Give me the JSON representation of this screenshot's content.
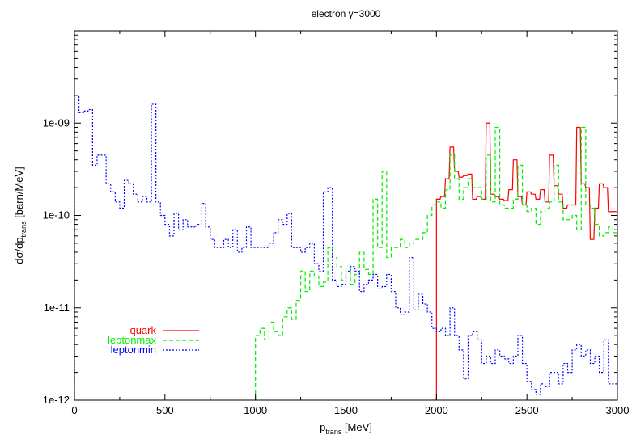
{
  "chart_data": {
    "type": "line",
    "step": true,
    "title": "electron γ=3000",
    "xlabel": {
      "main": "p",
      "sub": "trans",
      "unit": " [MeV]"
    },
    "ylabel": {
      "prefix": "dσ/dp",
      "sub": "trans",
      "unit": " [barn/MeV]"
    },
    "xlim": [
      0,
      3000
    ],
    "ylim": [
      1e-12,
      1e-08
    ],
    "yscale": "log",
    "grid": false,
    "legend_position": "bottom-left",
    "xticks": [
      0,
      500,
      1000,
      1500,
      2000,
      2500,
      3000
    ],
    "xtick_labels": [
      "0",
      "500",
      "1000",
      "1500",
      "2000",
      "2500",
      "3000"
    ],
    "yticks": [
      1e-12,
      1e-11,
      1e-10,
      1e-09
    ],
    "ytick_labels": [
      "1e-12",
      "1e-11",
      "1e-10",
      "1e-09"
    ],
    "series": [
      {
        "name": "quark",
        "color": "#ff0000",
        "dash": "",
        "x": [
          1980,
          2000,
          2025,
          2050,
          2075,
          2100,
          2125,
          2150,
          2175,
          2200,
          2225,
          2250,
          2275,
          2300,
          2325,
          2350,
          2375,
          2400,
          2425,
          2450,
          2475,
          2500,
          2525,
          2550,
          2575,
          2600,
          2625,
          2650,
          2675,
          2700,
          2725,
          2750,
          2775,
          2800,
          2825,
          2850,
          2875,
          2900,
          2925,
          2950,
          2975
        ],
        "y": [
          1e-12,
          1.5e-10,
          1.6e-10,
          2.5e-10,
          5.5e-10,
          3e-10,
          2.6e-10,
          2.7e-10,
          2.8e-10,
          1.5e-10,
          1.6e-10,
          1.5e-10,
          1e-09,
          1.7e-10,
          1.6e-10,
          1.5e-10,
          1.45e-10,
          1.9e-10,
          4e-10,
          1.6e-10,
          1.3e-10,
          1.8e-10,
          1.7e-10,
          1.5e-10,
          1.9e-10,
          1.4e-10,
          4.5e-10,
          2.1e-10,
          1.7e-10,
          1.2e-10,
          1.3e-10,
          1.3e-10,
          9e-10,
          2.2e-10,
          2e-10,
          5.5e-11,
          1.2e-10,
          2.2e-10,
          2e-10,
          1.1e-10,
          1.1e-10
        ]
      },
      {
        "name": "leptonmax",
        "color": "#00ee00",
        "dash": "5,3",
        "x": [
          1000,
          1025,
          1050,
          1075,
          1100,
          1125,
          1150,
          1175,
          1200,
          1225,
          1250,
          1275,
          1300,
          1325,
          1350,
          1375,
          1400,
          1425,
          1450,
          1475,
          1500,
          1525,
          1550,
          1575,
          1600,
          1625,
          1650,
          1675,
          1700,
          1725,
          1750,
          1775,
          1800,
          1825,
          1850,
          1875,
          1900,
          1925,
          1950,
          1975,
          2000,
          2025,
          2050,
          2075,
          2100,
          2125,
          2150,
          2175,
          2200,
          2225,
          2250,
          2275,
          2300,
          2325,
          2350,
          2375,
          2400,
          2425,
          2450,
          2475,
          2500,
          2525,
          2550,
          2575,
          2600,
          2625,
          2650,
          2675,
          2700,
          2725,
          2750,
          2775,
          2800,
          2825,
          2850,
          2875,
          2900,
          2925,
          2950,
          2975
        ],
        "y": [
          5e-12,
          6e-12,
          4.5e-12,
          7e-12,
          5.5e-12,
          5e-12,
          8e-12,
          1e-11,
          7.5e-12,
          1.2e-11,
          2.5e-11,
          1.5e-11,
          2.5e-11,
          2.2e-11,
          1.7e-11,
          1.9e-11,
          4.5e-11,
          3.5e-11,
          2.8e-11,
          2e-11,
          2.7e-11,
          1.8e-11,
          2.3e-11,
          4e-11,
          2.6e-11,
          2.3e-11,
          1.5e-10,
          4.5e-11,
          3e-10,
          3.5e-11,
          4.5e-11,
          4.5e-11,
          5.5e-11,
          4.5e-11,
          5e-11,
          5.5e-11,
          5.5e-11,
          6.5e-11,
          1e-10,
          1.3e-10,
          1.4e-10,
          1.2e-10,
          1.9e-10,
          4.5e-10,
          2.5e-10,
          1.5e-10,
          2e-10,
          2.5e-10,
          2e-10,
          2e-10,
          1.5e-10,
          4.5e-10,
          1.4e-10,
          9e-10,
          1.3e-10,
          1.2e-10,
          1.2e-10,
          1.5e-10,
          3.5e-10,
          1.3e-10,
          1.1e-10,
          1.2e-10,
          8e-11,
          1.1e-10,
          1.2e-10,
          1.4e-10,
          3.5e-10,
          1.4e-10,
          9e-11,
          9e-11,
          1e-10,
          7e-11,
          9e-10,
          1.3e-10,
          1.2e-10,
          8e-11,
          6e-11,
          6.5e-11,
          7.5e-11,
          6.5e-11
        ]
      },
      {
        "name": "leptonmin",
        "color": "#0000ff",
        "dash": "2,2",
        "x": [
          0,
          25,
          50,
          75,
          100,
          125,
          150,
          175,
          200,
          225,
          250,
          275,
          300,
          325,
          350,
          375,
          400,
          425,
          450,
          475,
          500,
          525,
          550,
          575,
          600,
          625,
          650,
          675,
          700,
          725,
          750,
          775,
          800,
          825,
          850,
          875,
          900,
          925,
          950,
          975,
          1000,
          1025,
          1050,
          1075,
          1100,
          1125,
          1150,
          1175,
          1200,
          1225,
          1250,
          1275,
          1300,
          1325,
          1350,
          1375,
          1400,
          1425,
          1450,
          1475,
          1500,
          1525,
          1550,
          1575,
          1600,
          1625,
          1650,
          1675,
          1700,
          1725,
          1750,
          1775,
          1800,
          1825,
          1850,
          1875,
          1900,
          1925,
          1950,
          1975,
          2000,
          2025,
          2050,
          2075,
          2100,
          2125,
          2150,
          2175,
          2200,
          2225,
          2250,
          2275,
          2300,
          2325,
          2350,
          2375,
          2400,
          2425,
          2450,
          2475,
          2500,
          2525,
          2550,
          2575,
          2600,
          2625,
          2650,
          2675,
          2700,
          2725,
          2750,
          2775,
          2800,
          2825,
          2850,
          2875,
          2900,
          2925,
          2950,
          2975
        ],
        "y": [
          2e-09,
          1.3e-09,
          1.35e-09,
          1.4e-09,
          3.5e-10,
          4.5e-10,
          4.5e-10,
          2.2e-10,
          1.8e-10,
          1.4e-10,
          1.2e-10,
          2.4e-10,
          2.2e-10,
          1.7e-10,
          1.4e-10,
          1.6e-10,
          1.4e-10,
          1.6e-09,
          1.4e-10,
          1e-10,
          8e-11,
          6e-11,
          1.05e-10,
          7e-11,
          9e-11,
          7.5e-11,
          7.5e-11,
          8e-11,
          1.35e-10,
          7.5e-11,
          5.5e-11,
          4.5e-11,
          4.5e-11,
          5.5e-11,
          4.5e-11,
          7e-11,
          4e-11,
          4.5e-11,
          7.5e-11,
          4.5e-11,
          4.5e-11,
          4.5e-11,
          4.5e-11,
          5e-11,
          6.5e-11,
          9e-11,
          8e-11,
          1.05e-10,
          4.5e-11,
          4.5e-11,
          4e-11,
          4.5e-11,
          5e-11,
          3e-11,
          2.5e-11,
          1.8e-10,
          2e-10,
          2e-11,
          1.7e-11,
          1.8e-11,
          2.5e-11,
          2.8e-11,
          2.5e-11,
          1.5e-11,
          1.8e-11,
          2e-11,
          2.3e-11,
          1.6e-11,
          1.7e-11,
          2.3e-11,
          1.5e-11,
          1e-11,
          8.5e-12,
          9e-12,
          3.5e-11,
          9.5e-12,
          1.4e-11,
          1.1e-11,
          9e-12,
          6e-12,
          5.5e-12,
          6e-12,
          5e-12,
          1e-11,
          5e-12,
          3.5e-12,
          1.7e-12,
          5e-12,
          5.5e-12,
          4.5e-12,
          2.5e-12,
          3e-12,
          2.5e-12,
          3.5e-12,
          3e-12,
          2.8e-12,
          2.5e-12,
          3e-12,
          5e-12,
          2.5e-12,
          1.6e-12,
          1.3e-12,
          1.15e-12,
          1.5e-12,
          1.4e-12,
          2e-12,
          2e-12,
          1.5e-12,
          2.5e-12,
          2e-12,
          3.5e-12,
          4e-12,
          3e-12,
          3.5e-12,
          2.5e-12,
          3e-12,
          2e-12,
          4.5e-12,
          1.5e-12,
          1.5e-12
        ]
      }
    ]
  }
}
